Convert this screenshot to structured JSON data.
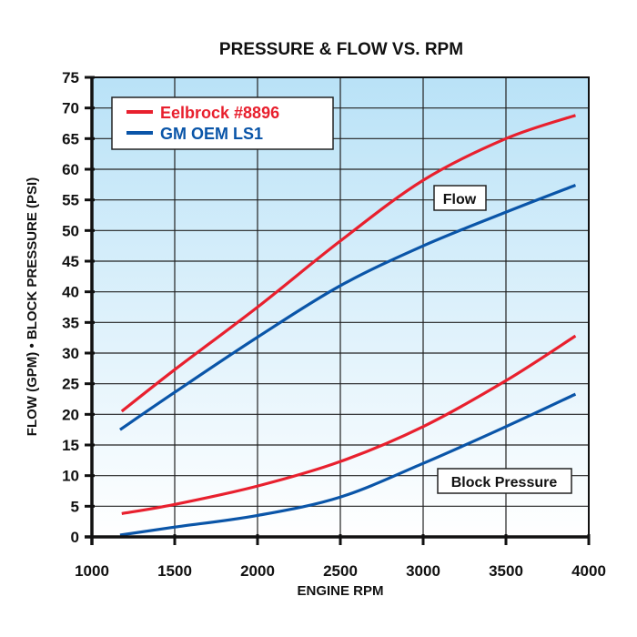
{
  "chart_data": {
    "type": "line",
    "title": "PRESSURE & FLOW VS. RPM",
    "xlabel": "ENGINE RPM",
    "ylabel": "FLOW (GPM) • BLOCK PRESSURE (PSI)",
    "xlim": [
      1000,
      4000
    ],
    "ylim": [
      0,
      75
    ],
    "xticks": [
      1000,
      1500,
      2000,
      2500,
      3000,
      3500,
      4000
    ],
    "yticks": [
      0,
      5,
      10,
      15,
      20,
      25,
      30,
      35,
      40,
      45,
      50,
      55,
      60,
      65,
      70,
      75
    ],
    "grid": true,
    "legend_position": "top-left",
    "legend": [
      {
        "name": "Eelbrock #8896",
        "color": "#e8202e"
      },
      {
        "name": "GM OEM LS1",
        "color": "#0a55a8"
      }
    ],
    "annotations": [
      "Flow",
      "Block Pressure"
    ],
    "series": [
      {
        "name": "Eelbrock #8896",
        "group": "Flow",
        "color": "#e8202e",
        "x": [
          1180,
          1500,
          2000,
          2500,
          3000,
          3500,
          3920
        ],
        "y": [
          20.5,
          27.3,
          37.5,
          48.3,
          58.2,
          65.0,
          68.8
        ]
      },
      {
        "name": "GM OEM LS1",
        "group": "Flow",
        "color": "#0a55a8",
        "x": [
          1170,
          1500,
          2000,
          2500,
          3000,
          3500,
          3920
        ],
        "y": [
          17.5,
          23.6,
          32.6,
          41.0,
          47.5,
          53.0,
          57.4
        ]
      },
      {
        "name": "Eelbrock #8896",
        "group": "Block Pressure",
        "color": "#e8202e",
        "x": [
          1180,
          1500,
          2000,
          2500,
          3000,
          3500,
          3920
        ],
        "y": [
          3.8,
          5.3,
          8.3,
          12.3,
          18.0,
          25.5,
          32.8
        ]
      },
      {
        "name": "GM OEM LS1",
        "group": "Block Pressure",
        "color": "#0a55a8",
        "x": [
          1170,
          1500,
          2000,
          2500,
          3000,
          3500,
          3920
        ],
        "y": [
          0.3,
          1.6,
          3.5,
          6.5,
          12.0,
          18.0,
          23.3
        ]
      }
    ],
    "background_gradient": [
      "#b9e2f7",
      "#ffffff"
    ]
  }
}
